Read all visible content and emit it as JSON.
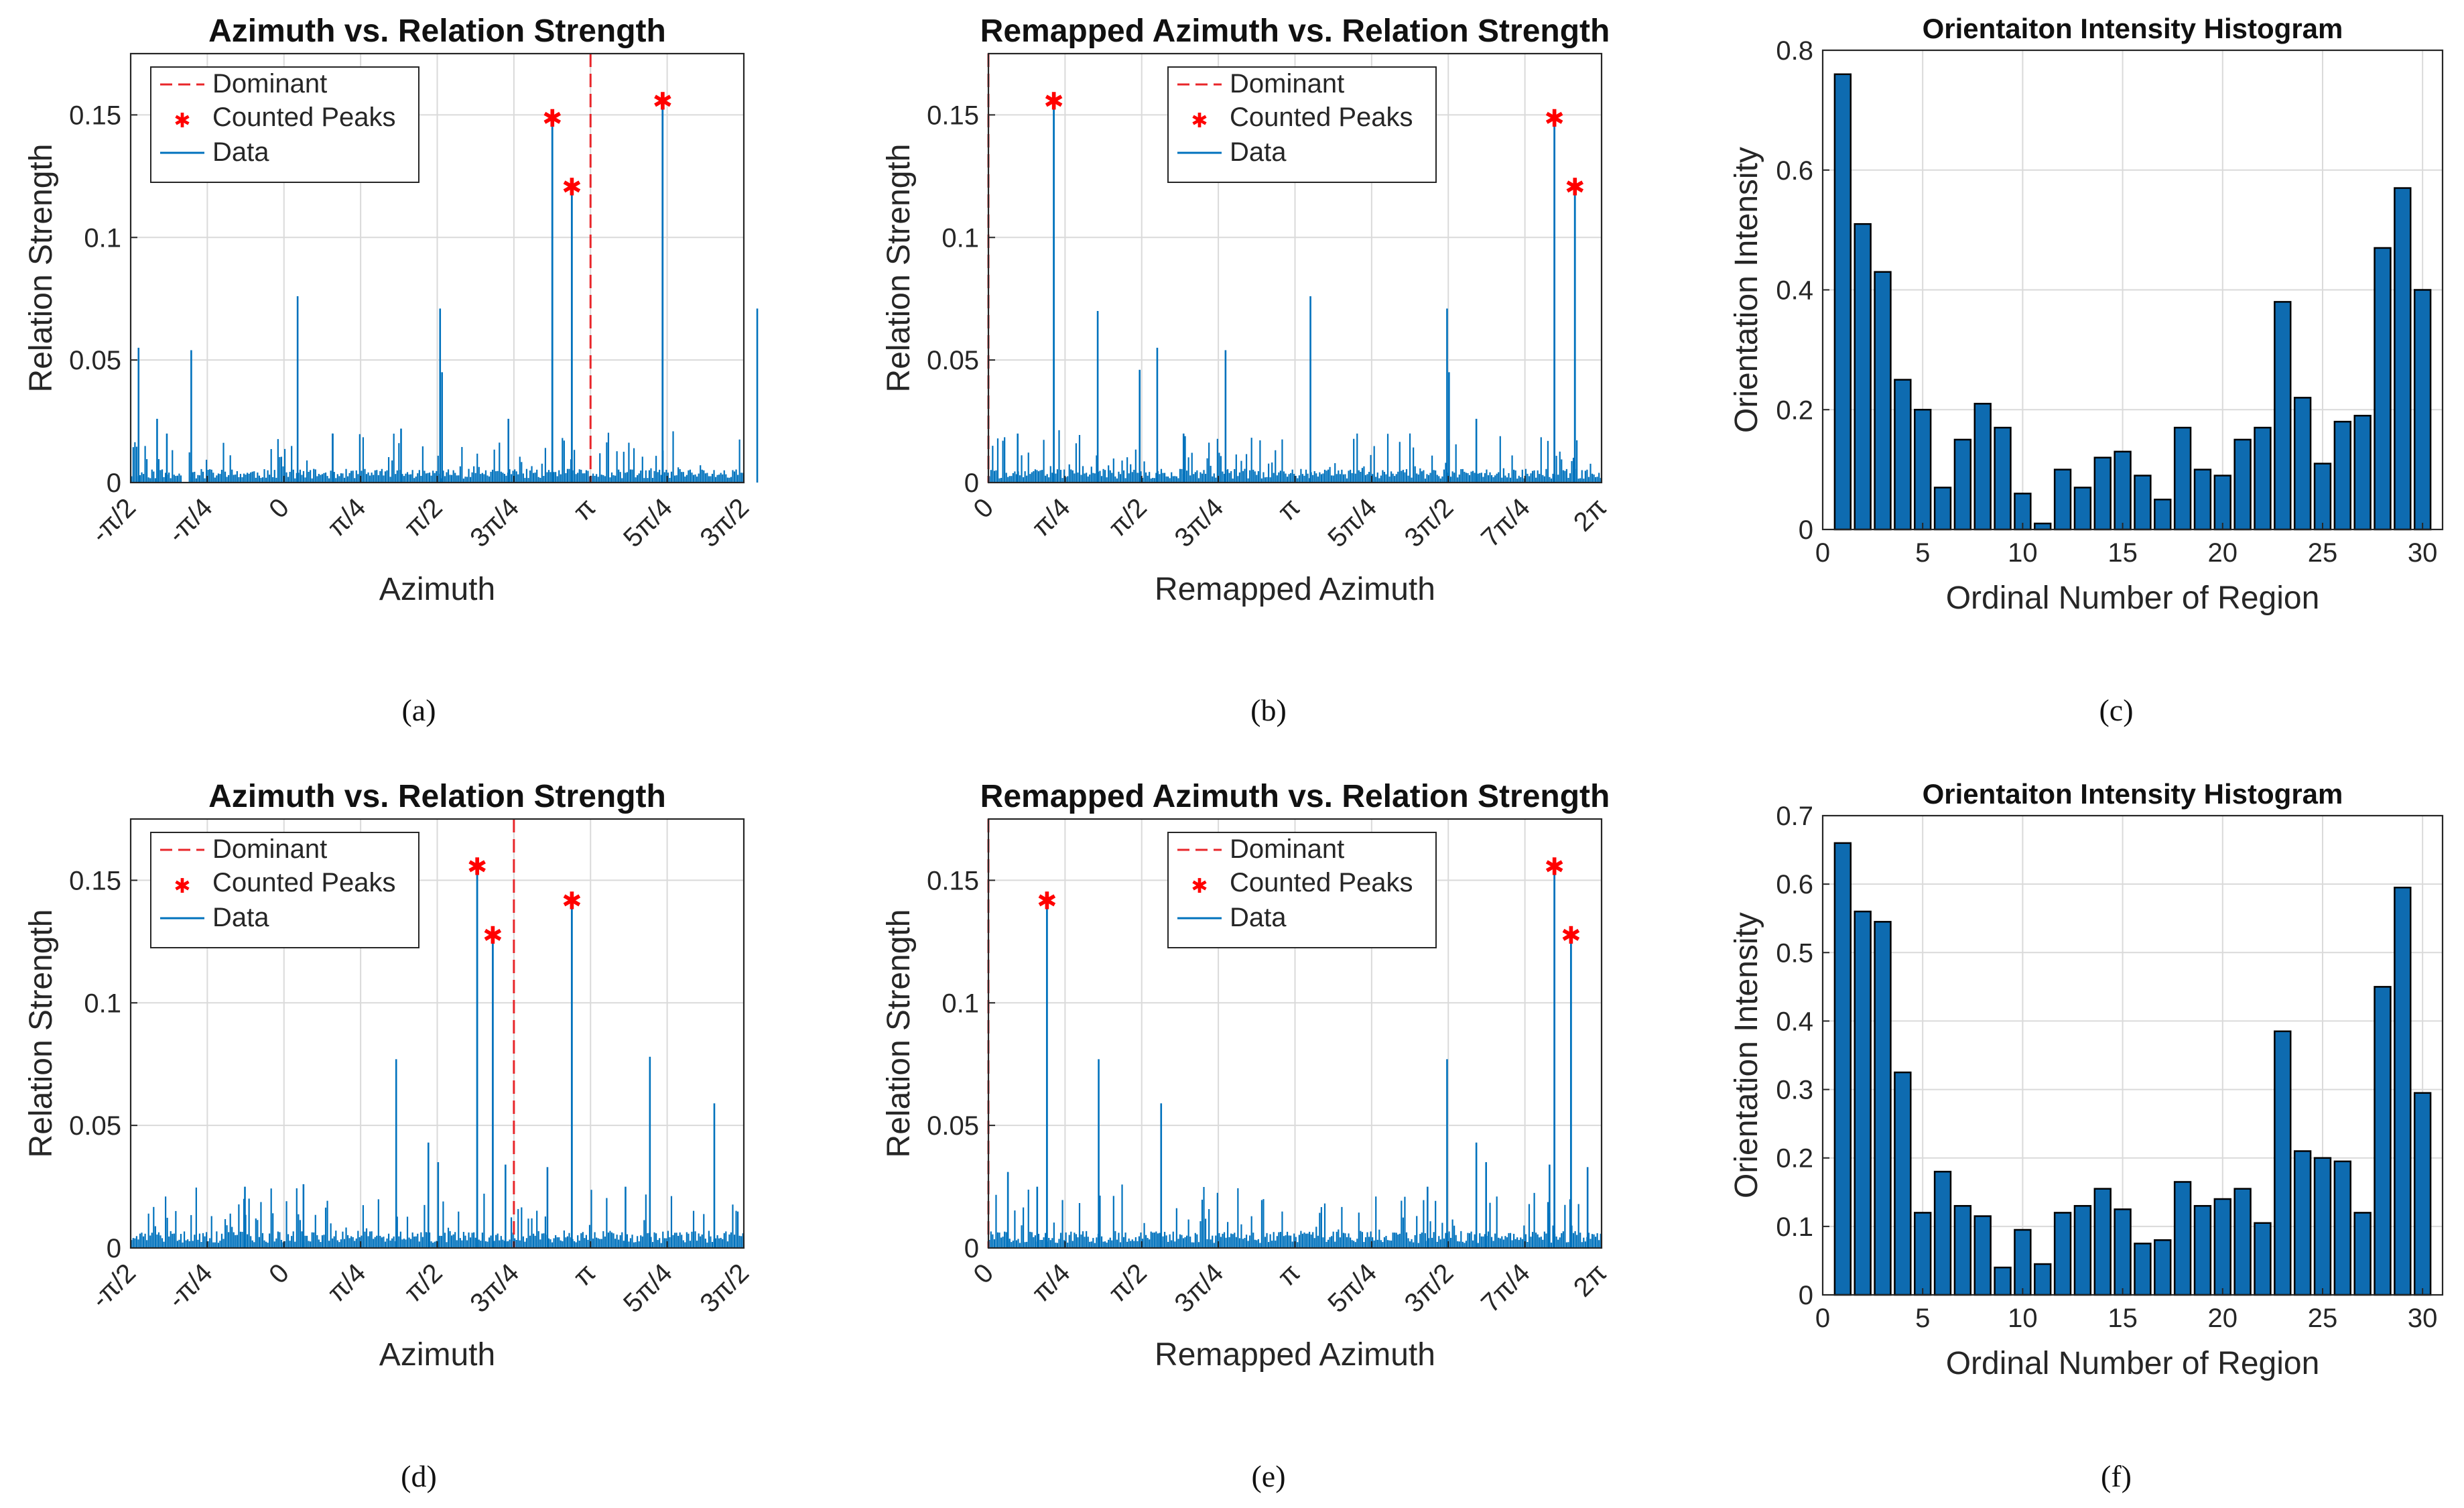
{
  "figure": {
    "colors": {
      "data": "#0072BD",
      "peak": "#FF0000",
      "dominant": "#E8262A",
      "bar": "#0E6BB0",
      "grid": "#DADADA",
      "axis": "#262626"
    }
  },
  "chart_data": [
    {
      "id": "a",
      "type": "line",
      "caption": "(a)",
      "title": "Azimuth vs. Relation Strength",
      "xlabel": "Azimuth",
      "ylabel": "Relation Strength",
      "xlim": [
        -1.5708,
        4.7124
      ],
      "ylim": [
        0,
        0.175
      ],
      "yticks": [
        0,
        0.05,
        0.1,
        0.15
      ],
      "ytick_labels": [
        "0",
        "0.05",
        "0.1",
        "0.15"
      ],
      "xticks": [
        -1.5708,
        -0.7854,
        0,
        0.7854,
        1.5708,
        2.3562,
        3.1416,
        3.927,
        4.7124
      ],
      "xtick_labels": [
        "-π/2",
        "-π/4",
        "0",
        "π/4",
        "π/2",
        "3π/4",
        "π",
        "5π/4",
        "3π/2"
      ],
      "legend": {
        "position": "top-left",
        "entries": [
          "Dominant",
          "Counted Peaks",
          "Data"
        ]
      },
      "dominant_x": 3.1416,
      "peaks": [
        [
          2.75,
          0.149
        ],
        [
          2.95,
          0.121
        ],
        [
          3.88,
          0.156
        ]
      ],
      "spikes": [
        [
          -1.49,
          0.055
        ],
        [
          -0.95,
          0.054
        ],
        [
          0.14,
          0.076
        ],
        [
          1.6,
          0.071
        ],
        [
          1.62,
          0.045
        ],
        [
          2.3,
          0.026
        ],
        [
          4.85,
          0.071
        ],
        [
          -1.3,
          0.026
        ],
        [
          -1.2,
          0.02
        ],
        [
          0.5,
          0.02
        ],
        [
          1.2,
          0.022
        ]
      ],
      "noise": {
        "seed": 11,
        "base": 0.004,
        "amp": 0.016,
        "count": 360,
        "gap_start": -1.05,
        "gap_end": -0.98
      }
    },
    {
      "id": "b",
      "type": "line",
      "caption": "(b)",
      "title": "Remapped Azimuth vs. Relation Strength",
      "xlabel": "Remapped Azimuth",
      "ylabel": "Relation Strength",
      "xlim": [
        0,
        6.2832
      ],
      "ylim": [
        0,
        0.175
      ],
      "yticks": [
        0,
        0.05,
        0.1,
        0.15
      ],
      "ytick_labels": [
        "0",
        "0.05",
        "0.1",
        "0.15"
      ],
      "xticks": [
        0,
        0.7854,
        1.5708,
        2.3562,
        3.1416,
        3.927,
        4.7124,
        5.4978,
        6.2832
      ],
      "xtick_labels": [
        "0",
        "π/4",
        "π/2",
        "3π/4",
        "π",
        "5π/4",
        "3π/2",
        "7π/4",
        "2π"
      ],
      "legend": {
        "position": "top-center",
        "entries": [
          "Dominant",
          "Counted Peaks",
          "Data"
        ]
      },
      "dominant_x": 0,
      "peaks": [
        [
          0.67,
          0.156
        ],
        [
          5.8,
          0.149
        ],
        [
          6.01,
          0.121
        ]
      ],
      "spikes": [
        [
          1.12,
          0.07
        ],
        [
          1.55,
          0.046
        ],
        [
          1.73,
          0.055
        ],
        [
          2.43,
          0.054
        ],
        [
          3.3,
          0.076
        ],
        [
          4.7,
          0.071
        ],
        [
          4.72,
          0.045
        ],
        [
          5.0,
          0.026
        ],
        [
          0.3,
          0.02
        ],
        [
          2.0,
          0.02
        ]
      ],
      "noise": {
        "seed": 22,
        "base": 0.004,
        "amp": 0.016,
        "count": 360,
        "gap_start": -1,
        "gap_end": -1
      }
    },
    {
      "id": "c",
      "type": "bar",
      "caption": "(c)",
      "title": "Orientaiton Intensity Histogram",
      "xlabel": "Ordinal Number of Region",
      "ylabel": "Orientation Intensity",
      "xlim": [
        0,
        31
      ],
      "ylim": [
        0,
        0.8
      ],
      "yticks": [
        0,
        0.2,
        0.4,
        0.6,
        0.8
      ],
      "ytick_labels": [
        "0",
        "0.2",
        "0.4",
        "0.6",
        "0.8"
      ],
      "xticks": [
        0,
        5,
        10,
        15,
        20,
        25,
        30
      ],
      "xtick_labels": [
        "0",
        "5",
        "10",
        "15",
        "20",
        "25",
        "30"
      ],
      "categories": [
        1,
        2,
        3,
        4,
        5,
        6,
        7,
        8,
        9,
        10,
        11,
        12,
        13,
        14,
        15,
        16,
        17,
        18,
        19,
        20,
        21,
        22,
        23,
        24,
        25,
        26,
        27,
        28,
        29,
        30
      ],
      "values": [
        0.76,
        0.51,
        0.43,
        0.25,
        0.2,
        0.07,
        0.15,
        0.21,
        0.17,
        0.06,
        0.01,
        0.1,
        0.07,
        0.12,
        0.13,
        0.09,
        0.05,
        0.17,
        0.1,
        0.09,
        0.15,
        0.17,
        0.38,
        0.22,
        0.11,
        0.18,
        0.19,
        0.47,
        0.57,
        0.4
      ]
    },
    {
      "id": "d",
      "type": "line",
      "caption": "(d)",
      "title": "Azimuth vs. Relation Strength",
      "xlabel": "Azimuth",
      "ylabel": "Relation Strength",
      "xlim": [
        -1.5708,
        4.7124
      ],
      "ylim": [
        0,
        0.175
      ],
      "yticks": [
        0,
        0.05,
        0.1,
        0.15
      ],
      "ytick_labels": [
        "0",
        "0.05",
        "0.1",
        "0.15"
      ],
      "xticks": [
        -1.5708,
        -0.7854,
        0,
        0.7854,
        1.5708,
        2.3562,
        3.1416,
        3.927,
        4.7124
      ],
      "xtick_labels": [
        "-π/2",
        "-π/4",
        "0",
        "π/4",
        "π/2",
        "3π/4",
        "π",
        "5π/4",
        "3π/2"
      ],
      "legend": {
        "position": "top-left",
        "entries": [
          "Dominant",
          "Counted Peaks",
          "Data"
        ]
      },
      "dominant_x": 2.3562,
      "peaks": [
        [
          1.98,
          0.156
        ],
        [
          2.14,
          0.128
        ],
        [
          2.95,
          0.142
        ]
      ],
      "spikes": [
        [
          1.15,
          0.077
        ],
        [
          1.48,
          0.043
        ],
        [
          1.58,
          0.035
        ],
        [
          2.27,
          0.034
        ],
        [
          2.7,
          0.033
        ],
        [
          3.75,
          0.078
        ],
        [
          4.41,
          0.059
        ],
        [
          0.2,
          0.026
        ],
        [
          -0.4,
          0.025
        ],
        [
          3.5,
          0.025
        ]
      ],
      "noise": {
        "seed": 33,
        "base": 0.005,
        "amp": 0.02,
        "count": 360,
        "gap_start": -1,
        "gap_end": -1
      }
    },
    {
      "id": "e",
      "type": "line",
      "caption": "(e)",
      "title": "Remapped Azimuth vs. Relation Strength",
      "xlabel": "Remapped Azimuth",
      "ylabel": "Relation Strength",
      "xlim": [
        0,
        6.2832
      ],
      "ylim": [
        0,
        0.175
      ],
      "yticks": [
        0,
        0.05,
        0.1,
        0.15
      ],
      "ytick_labels": [
        "0",
        "0.05",
        "0.1",
        "0.15"
      ],
      "xticks": [
        0,
        0.7854,
        1.5708,
        2.3562,
        3.1416,
        3.927,
        4.7124,
        5.4978,
        6.2832
      ],
      "xtick_labels": [
        "0",
        "π/4",
        "π/2",
        "3π/4",
        "π",
        "5π/4",
        "3π/2",
        "7π/4",
        "2π"
      ],
      "legend": {
        "position": "top-center",
        "entries": [
          "Dominant",
          "Counted Peaks",
          "Data"
        ]
      },
      "dominant_x": 0,
      "peaks": [
        [
          0.6,
          0.142
        ],
        [
          5.8,
          0.156
        ],
        [
          5.97,
          0.128
        ]
      ],
      "spikes": [
        [
          1.13,
          0.077
        ],
        [
          1.77,
          0.059
        ],
        [
          4.7,
          0.077
        ],
        [
          5.0,
          0.043
        ],
        [
          5.1,
          0.035
        ],
        [
          5.75,
          0.034
        ],
        [
          6.14,
          0.033
        ],
        [
          0.2,
          0.031
        ],
        [
          0.5,
          0.025
        ],
        [
          4.5,
          0.025
        ]
      ],
      "noise": {
        "seed": 44,
        "base": 0.005,
        "amp": 0.02,
        "count": 360,
        "gap_start": -1,
        "gap_end": -1
      }
    },
    {
      "id": "f",
      "type": "bar",
      "caption": "(f)",
      "title": "Orientaiton Intensity Histogram",
      "xlabel": "Ordinal Number of Region",
      "ylabel": "Orientation Intensity",
      "xlim": [
        0,
        31
      ],
      "ylim": [
        0,
        0.7
      ],
      "yticks": [
        0,
        0.1,
        0.2,
        0.3,
        0.4,
        0.5,
        0.6,
        0.7
      ],
      "ytick_labels": [
        "0",
        "0.1",
        "0.2",
        "0.3",
        "0.4",
        "0.5",
        "0.6",
        "0.7"
      ],
      "xticks": [
        0,
        5,
        10,
        15,
        20,
        25,
        30
      ],
      "xtick_labels": [
        "0",
        "5",
        "10",
        "15",
        "20",
        "25",
        "30"
      ],
      "categories": [
        1,
        2,
        3,
        4,
        5,
        6,
        7,
        8,
        9,
        10,
        11,
        12,
        13,
        14,
        15,
        16,
        17,
        18,
        19,
        20,
        21,
        22,
        23,
        24,
        25,
        26,
        27,
        28,
        29,
        30
      ],
      "values": [
        0.66,
        0.56,
        0.545,
        0.325,
        0.12,
        0.18,
        0.13,
        0.115,
        0.04,
        0.095,
        0.045,
        0.12,
        0.13,
        0.155,
        0.125,
        0.075,
        0.08,
        0.165,
        0.13,
        0.14,
        0.155,
        0.105,
        0.385,
        0.21,
        0.2,
        0.195,
        0.12,
        0.45,
        0.595,
        0.295
      ]
    }
  ]
}
